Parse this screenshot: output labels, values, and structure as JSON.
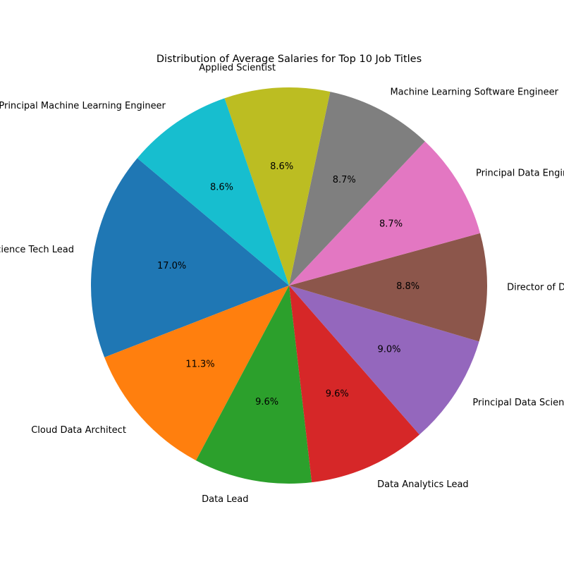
{
  "chart_data": {
    "type": "pie",
    "title": "Distribution of Average Salaries for Top 10 Job Titles",
    "start_angle_deg": 140,
    "direction": "counterclockwise",
    "slices": [
      {
        "label": "Data Science Tech Lead",
        "percent": 17.0,
        "color": "#1f77b4"
      },
      {
        "label": "Cloud Data Architect",
        "percent": 11.3,
        "color": "#ff7f0e"
      },
      {
        "label": "Data Lead",
        "percent": 9.6,
        "color": "#2ca02c"
      },
      {
        "label": "Data Analytics Lead",
        "percent": 9.6,
        "color": "#d62728"
      },
      {
        "label": "Principal Data Scientist",
        "percent": 9.0,
        "color": "#9467bd"
      },
      {
        "label": "Director of Data Science",
        "percent": 8.8,
        "color": "#8c564b"
      },
      {
        "label": "Principal Data Engineer",
        "percent": 8.7,
        "color": "#e377c2"
      },
      {
        "label": "Machine Learning Software Engineer",
        "percent": 8.7,
        "color": "#7f7f7f"
      },
      {
        "label": "Applied Scientist",
        "percent": 8.6,
        "color": "#bcbd22"
      },
      {
        "label": "Principal Machine Learning Engineer",
        "percent": 8.6,
        "color": "#17becf"
      }
    ]
  }
}
